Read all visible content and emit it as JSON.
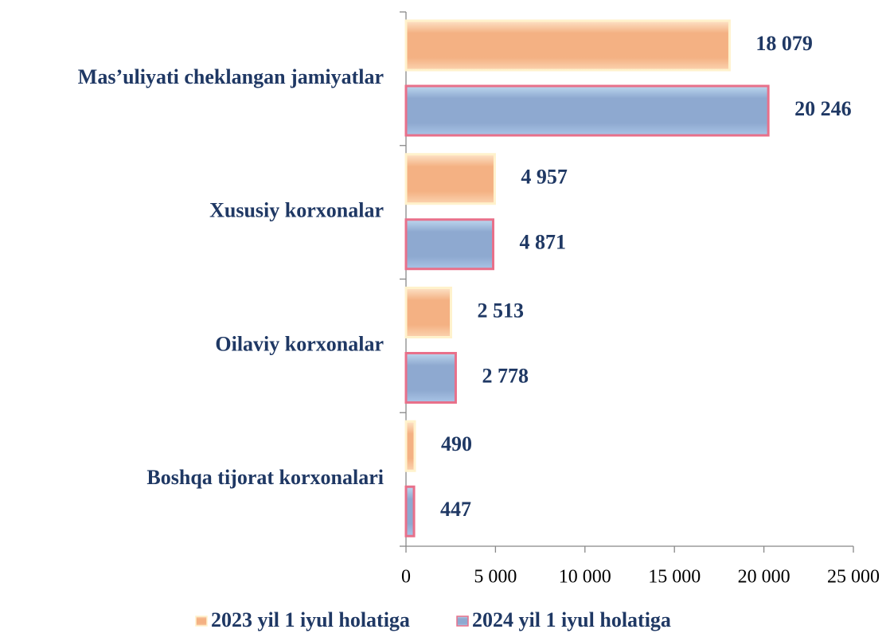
{
  "chart_data": {
    "type": "barh",
    "categories": [
      "Mas’uliyati cheklangan jamiyatlar",
      "Xususiy korxonalar",
      "Oilaviy korxonalar",
      "Boshqa tijorat korxonalari"
    ],
    "series": [
      {
        "name": "2023 yil 1 iyul holatiga",
        "color": "#f4b183",
        "values": [
          18079,
          4957,
          2513,
          490
        ],
        "value_labels": [
          "18 079",
          "4 957",
          "2 513",
          "490"
        ]
      },
      {
        "name": "2024 yil 1 iyul holatiga",
        "color": "#8ea9d0",
        "values": [
          20246,
          4871,
          2778,
          447
        ],
        "value_labels": [
          "20 246",
          "4 871",
          "2 778",
          "447"
        ]
      }
    ],
    "xlim": [
      0,
      25000
    ],
    "xticks": [
      0,
      {
        "value": 5000,
        "label": "5 000"
      },
      {
        "value": 10000,
        "label": "10 000"
      },
      {
        "value": 15000,
        "label": "15 000"
      },
      {
        "value": 20000,
        "label": "20 000"
      },
      {
        "value": 25000,
        "label": "25 000"
      }
    ],
    "legend": "bottom"
  }
}
